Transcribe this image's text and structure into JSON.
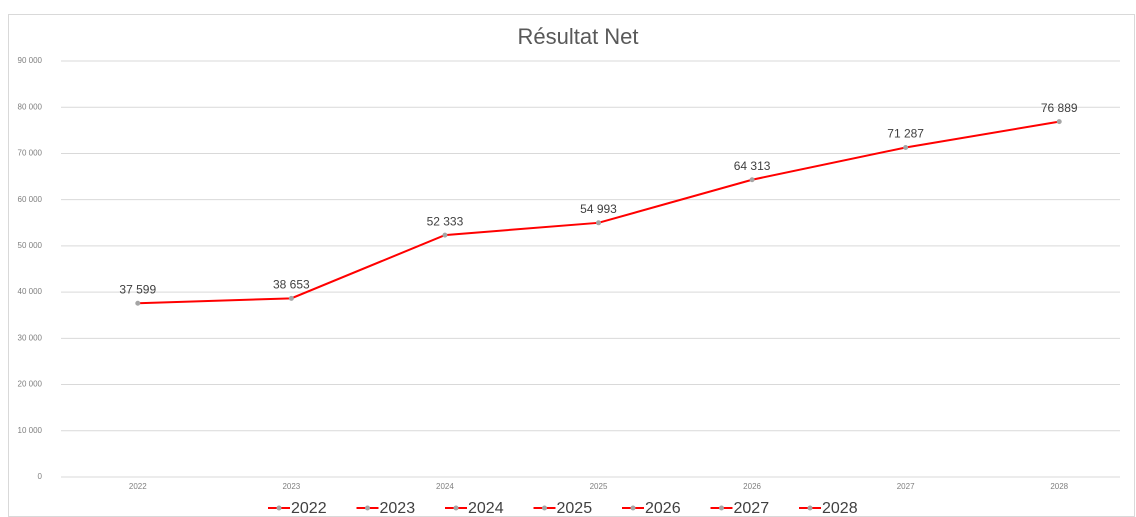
{
  "chart_data": {
    "type": "line",
    "title": "Résultat Net",
    "categories": [
      "2022",
      "2023",
      "2024",
      "2025",
      "2026",
      "2027",
      "2028"
    ],
    "values": [
      37599,
      38653,
      52333,
      54993,
      64313,
      71287,
      76889
    ],
    "value_labels": [
      "37 599",
      "38 653",
      "52 333",
      "54 993",
      "64 313",
      "71 287",
      "76 889"
    ],
    "color": "#ff0000",
    "marker_color": "#a5a5a5",
    "ylim": [
      0,
      90000
    ],
    "yticks": [
      0,
      {
        "value": 10000,
        "label": "10 000"
      },
      {
        "value": 20000,
        "label": "20 000"
      },
      {
        "value": 30000,
        "label": "30 000"
      },
      {
        "value": 40000,
        "label": "40 000"
      },
      {
        "value": 50000,
        "label": "50 000"
      },
      {
        "value": 60000,
        "label": "60 000"
      },
      {
        "value": 70000,
        "label": "70 000"
      },
      {
        "value": 80000,
        "label": "80 000"
      },
      {
        "value": 90000,
        "label": "90 000"
      }
    ],
    "grid": true
  }
}
